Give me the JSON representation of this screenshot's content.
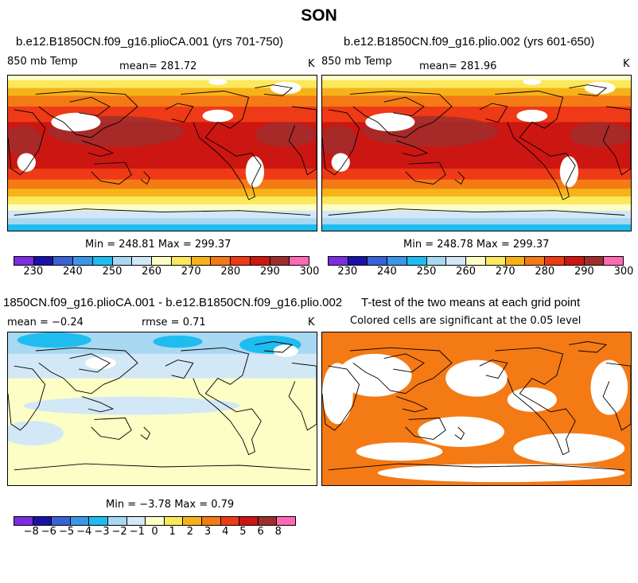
{
  "figure": {
    "title": "SON"
  },
  "temp_colors": [
    "#7a2ee0",
    "#1a12a8",
    "#3a62d8",
    "#3c96e8",
    "#1fbcf0",
    "#a8d8f2",
    "#d2e8f6",
    "#fdfdc6",
    "#fbe85c",
    "#f6b319",
    "#f47a15",
    "#ee3a16",
    "#cc1612",
    "#a02d2d",
    "#ff69b4"
  ],
  "diff_colors": [
    "#7a2ee0",
    "#1a12a8",
    "#3a62d8",
    "#3c96e8",
    "#1fbcf0",
    "#a8d8f2",
    "#d2e8f6",
    "#fdfdc6",
    "#fbe85c",
    "#f6b319",
    "#f47a15",
    "#ee3a16",
    "#cc1612",
    "#a02d2d",
    "#ff69b4"
  ],
  "ttest_color": "#f47a15",
  "panels": [
    {
      "title": "b.e12.B1850CN.f09_g16.plioCA.001 (yrs 701-750)",
      "variable": "850 mb Temp",
      "mean": "mean= 281.72",
      "units": "K",
      "stats": "Min = 248.81 Max = 299.37",
      "tick_labels": [
        "230",
        "240",
        "250",
        "260",
        "270",
        "280",
        "290",
        "300"
      ]
    },
    {
      "title": "b.e12.B1850CN.f09_g16.plio.002 (yrs 601-650)",
      "variable": "850 mb Temp",
      "mean": "mean= 281.96",
      "units": "K",
      "stats": "Min = 248.78 Max = 299.37",
      "tick_labels": [
        "230",
        "240",
        "250",
        "260",
        "270",
        "280",
        "290",
        "300"
      ]
    },
    {
      "title": "1850CN.f09_g16.plioCA.001 - b.e12.B1850CN.f09_g16.plio.002",
      "mean": "mean =  −0.24",
      "rmse": "rmse =   0.71",
      "units": "K",
      "stats": "Min =  −3.78 Max =   0.79",
      "tick_labels": [
        "−8",
        "−6",
        "−5",
        "−4",
        "−3",
        "−2",
        "−1",
        "0",
        "1",
        "2",
        "3",
        "4",
        "5",
        "6",
        "8"
      ]
    },
    {
      "title": "T-test of the two means at each grid point",
      "subtitle": "Colored cells are significant at the 0.05 level"
    }
  ],
  "chart_data": [
    {
      "type": "heatmap",
      "title": "b.e12.B1850CN.f09_g16.plioCA.001 (yrs 701-750)",
      "variable": "850 mb Temp",
      "units": "K",
      "mean": 281.72,
      "min": 248.81,
      "max": 299.37,
      "colorbar_levels": [
        230,
        235,
        240,
        245,
        250,
        255,
        260,
        265,
        270,
        275,
        280,
        285,
        290,
        295,
        300
      ],
      "colorbar_tick_labels": [
        230,
        240,
        250,
        260,
        270,
        280,
        290,
        300
      ]
    },
    {
      "type": "heatmap",
      "title": "b.e12.B1850CN.f09_g16.plio.002 (yrs 601-650)",
      "variable": "850 mb Temp",
      "units": "K",
      "mean": 281.96,
      "min": 248.78,
      "max": 299.37,
      "colorbar_levels": [
        230,
        235,
        240,
        245,
        250,
        255,
        260,
        265,
        270,
        275,
        280,
        285,
        290,
        295,
        300
      ],
      "colorbar_tick_labels": [
        230,
        240,
        250,
        260,
        270,
        280,
        290,
        300
      ]
    },
    {
      "type": "heatmap",
      "title": "1850CN.f09_g16.plioCA.001 - b.e12.B1850CN.f09_g16.plio.002",
      "units": "K",
      "mean": -0.24,
      "rmse": 0.71,
      "min": -3.78,
      "max": 0.79,
      "colorbar_tick_labels": [
        -8,
        -6,
        -5,
        -4,
        -3,
        -2,
        -1,
        0,
        1,
        2,
        3,
        4,
        5,
        6,
        8
      ]
    },
    {
      "type": "heatmap",
      "title": "T-test of the two means at each grid point",
      "significance_level": 0.05
    }
  ]
}
